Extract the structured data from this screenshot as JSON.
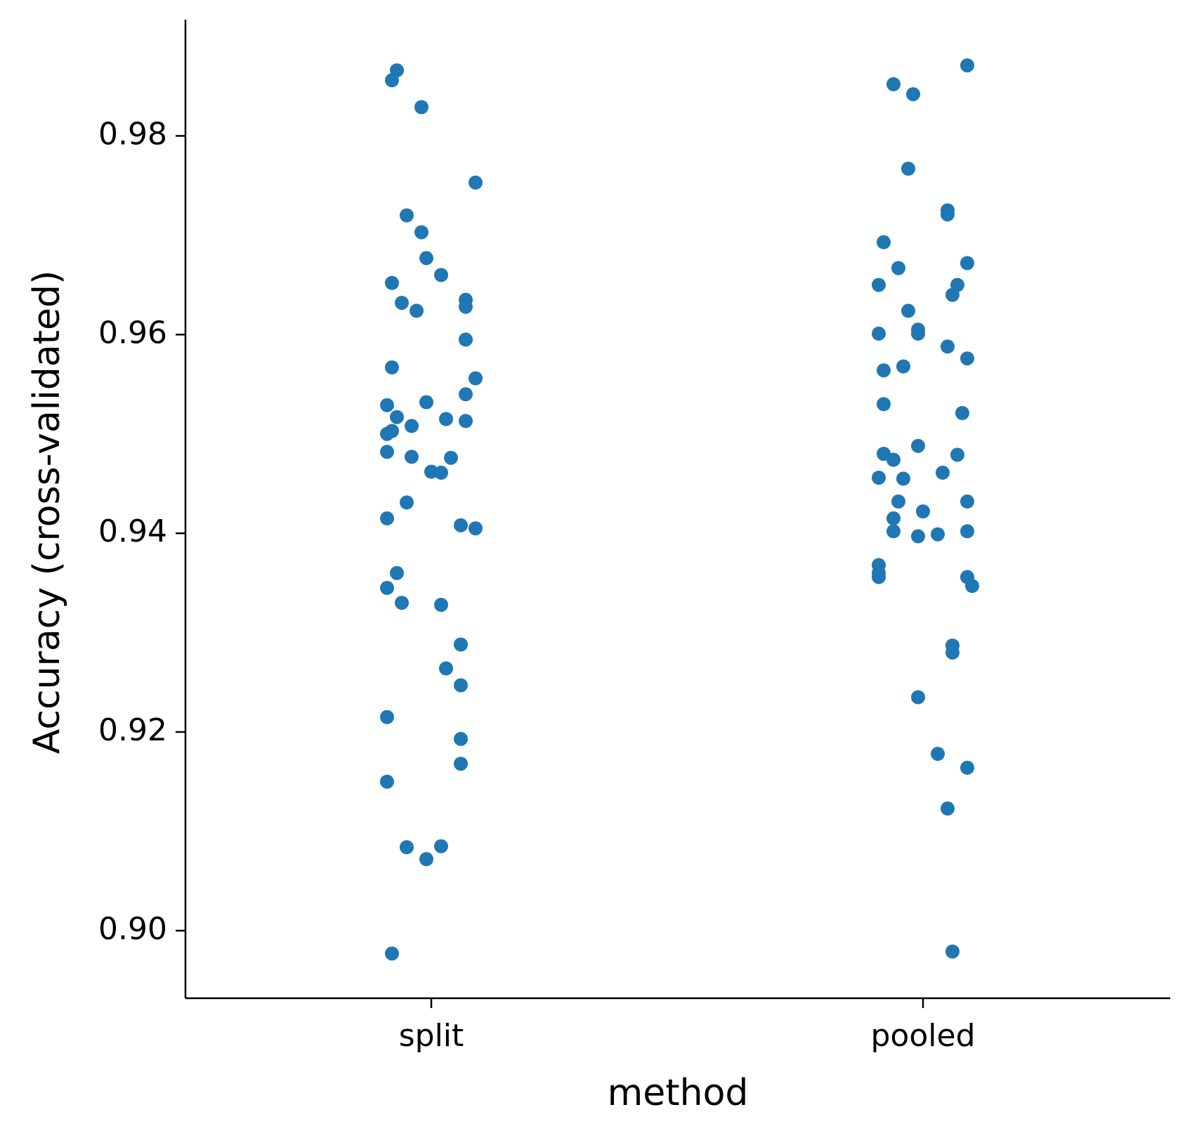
{
  "chart_data": {
    "type": "scatter",
    "xlabel": "method",
    "ylabel": "Accuracy (cross-validated)",
    "categories": [
      "split",
      "pooled"
    ],
    "ylim": [
      0.8932,
      0.9917
    ],
    "yticks": [
      0.9,
      0.92,
      0.94,
      0.96,
      0.98
    ],
    "ytick_labels": [
      "0.90",
      "0.92",
      "0.94",
      "0.96",
      "0.98"
    ],
    "grid": false,
    "point_color": "#1f77b4",
    "series": [
      {
        "category": "split",
        "points": [
          [
            -0.07,
            0.9866
          ],
          [
            -0.08,
            0.9856
          ],
          [
            -0.02,
            0.9829
          ],
          [
            0.09,
            0.9753
          ],
          [
            -0.05,
            0.972
          ],
          [
            -0.02,
            0.9703
          ],
          [
            -0.01,
            0.9677
          ],
          [
            0.02,
            0.966
          ],
          [
            -0.08,
            0.9652
          ],
          [
            -0.06,
            0.9632
          ],
          [
            0.07,
            0.9635
          ],
          [
            -0.03,
            0.9624
          ],
          [
            0.07,
            0.9628
          ],
          [
            0.07,
            0.9595
          ],
          [
            -0.08,
            0.9567
          ],
          [
            0.09,
            0.9556
          ],
          [
            0.07,
            0.954
          ],
          [
            -0.09,
            0.9529
          ],
          [
            -0.01,
            0.9532
          ],
          [
            -0.07,
            0.9517
          ],
          [
            0.03,
            0.9515
          ],
          [
            0.07,
            0.9513
          ],
          [
            -0.04,
            0.9508
          ],
          [
            -0.08,
            0.9503
          ],
          [
            -0.09,
            0.95
          ],
          [
            -0.09,
            0.9482
          ],
          [
            -0.04,
            0.9477
          ],
          [
            0.04,
            0.9476
          ],
          [
            0.0,
            0.9462
          ],
          [
            0.02,
            0.9461
          ],
          [
            -0.05,
            0.9431
          ],
          [
            -0.09,
            0.9415
          ],
          [
            0.06,
            0.9408
          ],
          [
            0.09,
            0.9405
          ],
          [
            -0.07,
            0.936
          ],
          [
            -0.09,
            0.9345
          ],
          [
            -0.06,
            0.933
          ],
          [
            0.02,
            0.9328
          ],
          [
            0.06,
            0.9288
          ],
          [
            0.03,
            0.9264
          ],
          [
            0.06,
            0.9247
          ],
          [
            -0.09,
            0.9215
          ],
          [
            0.06,
            0.9193
          ],
          [
            0.06,
            0.9168
          ],
          [
            -0.09,
            0.915
          ],
          [
            -0.05,
            0.9084
          ],
          [
            0.02,
            0.9085
          ],
          [
            -0.01,
            0.9072
          ],
          [
            -0.08,
            0.8977
          ]
        ]
      },
      {
        "category": "pooled",
        "points": [
          [
            0.09,
            0.9871
          ],
          [
            -0.06,
            0.9852
          ],
          [
            -0.02,
            0.9842
          ],
          [
            -0.03,
            0.9767
          ],
          [
            0.05,
            0.9725
          ],
          [
            0.05,
            0.9721
          ],
          [
            -0.08,
            0.9693
          ],
          [
            0.09,
            0.9672
          ],
          [
            -0.05,
            0.9667
          ],
          [
            -0.09,
            0.965
          ],
          [
            0.07,
            0.965
          ],
          [
            0.06,
            0.964
          ],
          [
            -0.03,
            0.9624
          ],
          [
            -0.01,
            0.9605
          ],
          [
            -0.01,
            0.9601
          ],
          [
            -0.09,
            0.9601
          ],
          [
            0.05,
            0.9588
          ],
          [
            0.09,
            0.9576
          ],
          [
            -0.04,
            0.9568
          ],
          [
            -0.08,
            0.9564
          ],
          [
            -0.08,
            0.953
          ],
          [
            0.08,
            0.9521
          ],
          [
            -0.01,
            0.9488
          ],
          [
            -0.08,
            0.948
          ],
          [
            0.07,
            0.9479
          ],
          [
            -0.06,
            0.9474
          ],
          [
            0.04,
            0.9461
          ],
          [
            -0.09,
            0.9456
          ],
          [
            -0.04,
            0.9455
          ],
          [
            -0.05,
            0.9432
          ],
          [
            0.09,
            0.9432
          ],
          [
            0.0,
            0.9422
          ],
          [
            -0.06,
            0.9415
          ],
          [
            -0.06,
            0.9402
          ],
          [
            0.09,
            0.9402
          ],
          [
            0.03,
            0.9399
          ],
          [
            -0.01,
            0.9397
          ],
          [
            -0.09,
            0.9368
          ],
          [
            -0.09,
            0.936
          ],
          [
            0.09,
            0.9356
          ],
          [
            -0.09,
            0.9356
          ],
          [
            0.1,
            0.9347
          ],
          [
            0.06,
            0.9287
          ],
          [
            0.06,
            0.928
          ],
          [
            -0.01,
            0.9235
          ],
          [
            0.03,
            0.9178
          ],
          [
            0.09,
            0.9164
          ],
          [
            0.05,
            0.9123
          ],
          [
            0.06,
            0.8979
          ]
        ]
      }
    ]
  }
}
